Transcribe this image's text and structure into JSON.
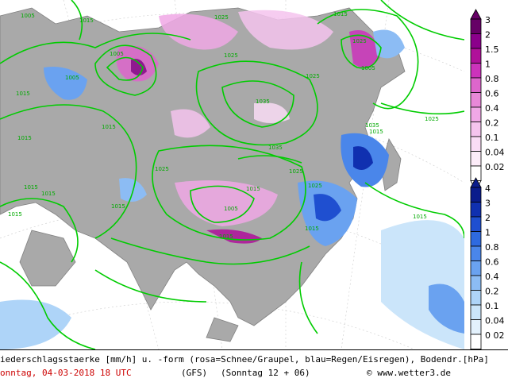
{
  "map": {
    "pressure_labels": [
      {
        "text": "1005"
      },
      {
        "text": "1015"
      },
      {
        "text": "1025"
      },
      {
        "text": "1015"
      },
      {
        "text": "1005"
      },
      {
        "text": "1025"
      },
      {
        "text": "1035"
      },
      {
        "text": "1005"
      },
      {
        "text": "1015"
      },
      {
        "text": "1025"
      },
      {
        "text": "1015"
      },
      {
        "text": "1015"
      },
      {
        "text": "1035"
      },
      {
        "text": "1025"
      },
      {
        "text": "1015"
      },
      {
        "text": "1005"
      },
      {
        "text": "1015"
      },
      {
        "text": "1025"
      },
      {
        "text": "1015"
      },
      {
        "text": "1025"
      },
      {
        "text": "1035"
      },
      {
        "text": "1015"
      },
      {
        "text": "1015"
      },
      {
        "text": "1015"
      },
      {
        "text": "1025"
      },
      {
        "text": "1015"
      },
      {
        "text": "1005"
      },
      {
        "text": "1015"
      },
      {
        "text": "1015"
      },
      {
        "text": "1025"
      }
    ]
  },
  "legend": {
    "snow": {
      "ticks": [
        "3",
        "2",
        "1.5",
        "1",
        "0.8",
        "0.6",
        "0.4",
        "0.2",
        "0.1",
        "0.04",
        "0.02"
      ],
      "colors": [
        "#660066",
        "#8b008b",
        "#b0109a",
        "#cc33bb",
        "#dd66cc",
        "#e888d8",
        "#f0a8e6",
        "#f5c4ee",
        "#f9dcf5",
        "#fcecf9",
        "#ffffff"
      ]
    },
    "rain": {
      "ticks": [
        "4",
        "3",
        "2",
        "1",
        "0.8",
        "0.6",
        "0.4",
        "0.2",
        "0.1",
        "0.04",
        "0 02"
      ],
      "colors": [
        "#0a1c8c",
        "#1030b0",
        "#1f4fd0",
        "#2e6ae0",
        "#4a86ea",
        "#6aa2f0",
        "#8cbcf4",
        "#aed4f8",
        "#cbe5fa",
        "#e3f1fc",
        "#ffffff"
      ]
    }
  },
  "footer": {
    "line1": "iederschlagsstaerke [mm/h] u. -form (rosa=Schnee/Graupel, blau=Regen/Eisregen), Bodendr.[hPa]",
    "date": "onntag, 04-03-2018  18 UTC",
    "model": "(GFS)",
    "run": "(Sonntag 12 + 06)",
    "credit": "© www.wetter3.de",
    "date_color": "#cc0000"
  }
}
